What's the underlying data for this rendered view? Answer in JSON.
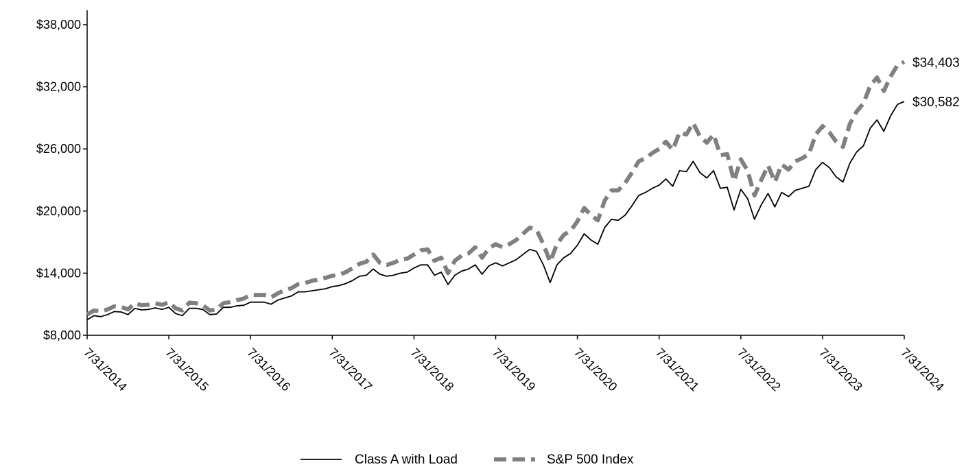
{
  "chart_data": {
    "type": "line",
    "title": "",
    "xlabel": "",
    "ylabel": "",
    "x_ticks": [
      "7/31/2014",
      "7/31/2015",
      "7/31/2016",
      "7/31/2017",
      "7/31/2018",
      "7/31/2019",
      "7/31/2020",
      "7/31/2021",
      "7/31/2022",
      "7/31/2023",
      "7/31/2024"
    ],
    "y_ticks": [
      "$8,000",
      "$14,000",
      "$20,000",
      "$26,000",
      "$32,000",
      "$38,000"
    ],
    "ylim": [
      8000,
      38000
    ],
    "xlim": [
      "7/31/2014",
      "7/31/2024"
    ],
    "grid": false,
    "legend_position": "bottom-center",
    "series": [
      {
        "name": "Class A with Load",
        "color": "#000000",
        "style": "solid",
        "end_label": "$30,582",
        "values": [
          9500,
          9900,
          9800,
          10000,
          10300,
          10250,
          10000,
          10600,
          10450,
          10500,
          10650,
          10500,
          10700,
          10100,
          9900,
          10600,
          10600,
          10500,
          10000,
          10050,
          10700,
          10700,
          10850,
          10900,
          11200,
          11200,
          11200,
          11000,
          11400,
          11600,
          11800,
          12200,
          12200,
          12300,
          12400,
          12500,
          12700,
          12800,
          13000,
          13300,
          13700,
          13800,
          14400,
          13900,
          13700,
          13800,
          14000,
          14100,
          14500,
          14800,
          14800,
          13800,
          14100,
          12900,
          13800,
          14200,
          14400,
          14800,
          13900,
          14700,
          15000,
          14700,
          15000,
          15300,
          15800,
          16300,
          16100,
          14800,
          13100,
          14800,
          15500,
          15900,
          16700,
          17800,
          17200,
          16800,
          18400,
          19200,
          19100,
          19600,
          20500,
          21500,
          21800,
          22200,
          22500,
          23100,
          22400,
          23900,
          23800,
          24800,
          23700,
          23200,
          23900,
          22200,
          22300,
          20100,
          22100,
          21200,
          19200,
          20600,
          21700,
          20400,
          21800,
          21400,
          22000,
          22200,
          22400,
          24000,
          24700,
          24200,
          23300,
          22800,
          24600,
          25700,
          26300,
          28000,
          28800,
          27700,
          29200,
          30300,
          30582
        ]
      },
      {
        "name": "S&P 500 Index",
        "color": "#808080",
        "style": "dashed",
        "end_label": "$34,403",
        "values": [
          10000,
          10400,
          10300,
          10500,
          10800,
          10750,
          10500,
          11100,
          10900,
          10950,
          11100,
          10950,
          11200,
          10600,
          10400,
          11150,
          11100,
          10900,
          10400,
          10500,
          11100,
          11200,
          11400,
          11550,
          11900,
          11900,
          11900,
          11650,
          12050,
          12350,
          12550,
          12950,
          13050,
          13250,
          13400,
          13550,
          13750,
          13850,
          14100,
          14500,
          14900,
          15100,
          15800,
          15000,
          14800,
          15000,
          15300,
          15400,
          15800,
          16200,
          16300,
          15200,
          15500,
          14000,
          15200,
          15700,
          15900,
          16500,
          15500,
          16400,
          16800,
          16500,
          16800,
          17200,
          17800,
          18400,
          18200,
          16800,
          15100,
          16800,
          17700,
          18100,
          19000,
          20300,
          19600,
          19100,
          21000,
          22000,
          22000,
          22700,
          23700,
          24800,
          25100,
          25600,
          26000,
          26700,
          25900,
          27600,
          27400,
          28500,
          27200,
          26600,
          27400,
          25400,
          25500,
          22900,
          25000,
          23900,
          21500,
          23000,
          24400,
          22800,
          24500,
          24000,
          24800,
          25100,
          25500,
          27400,
          28200,
          27600,
          26700,
          26200,
          28400,
          29600,
          30400,
          32100,
          32900,
          31600,
          33000,
          34100,
          34403
        ]
      }
    ]
  }
}
